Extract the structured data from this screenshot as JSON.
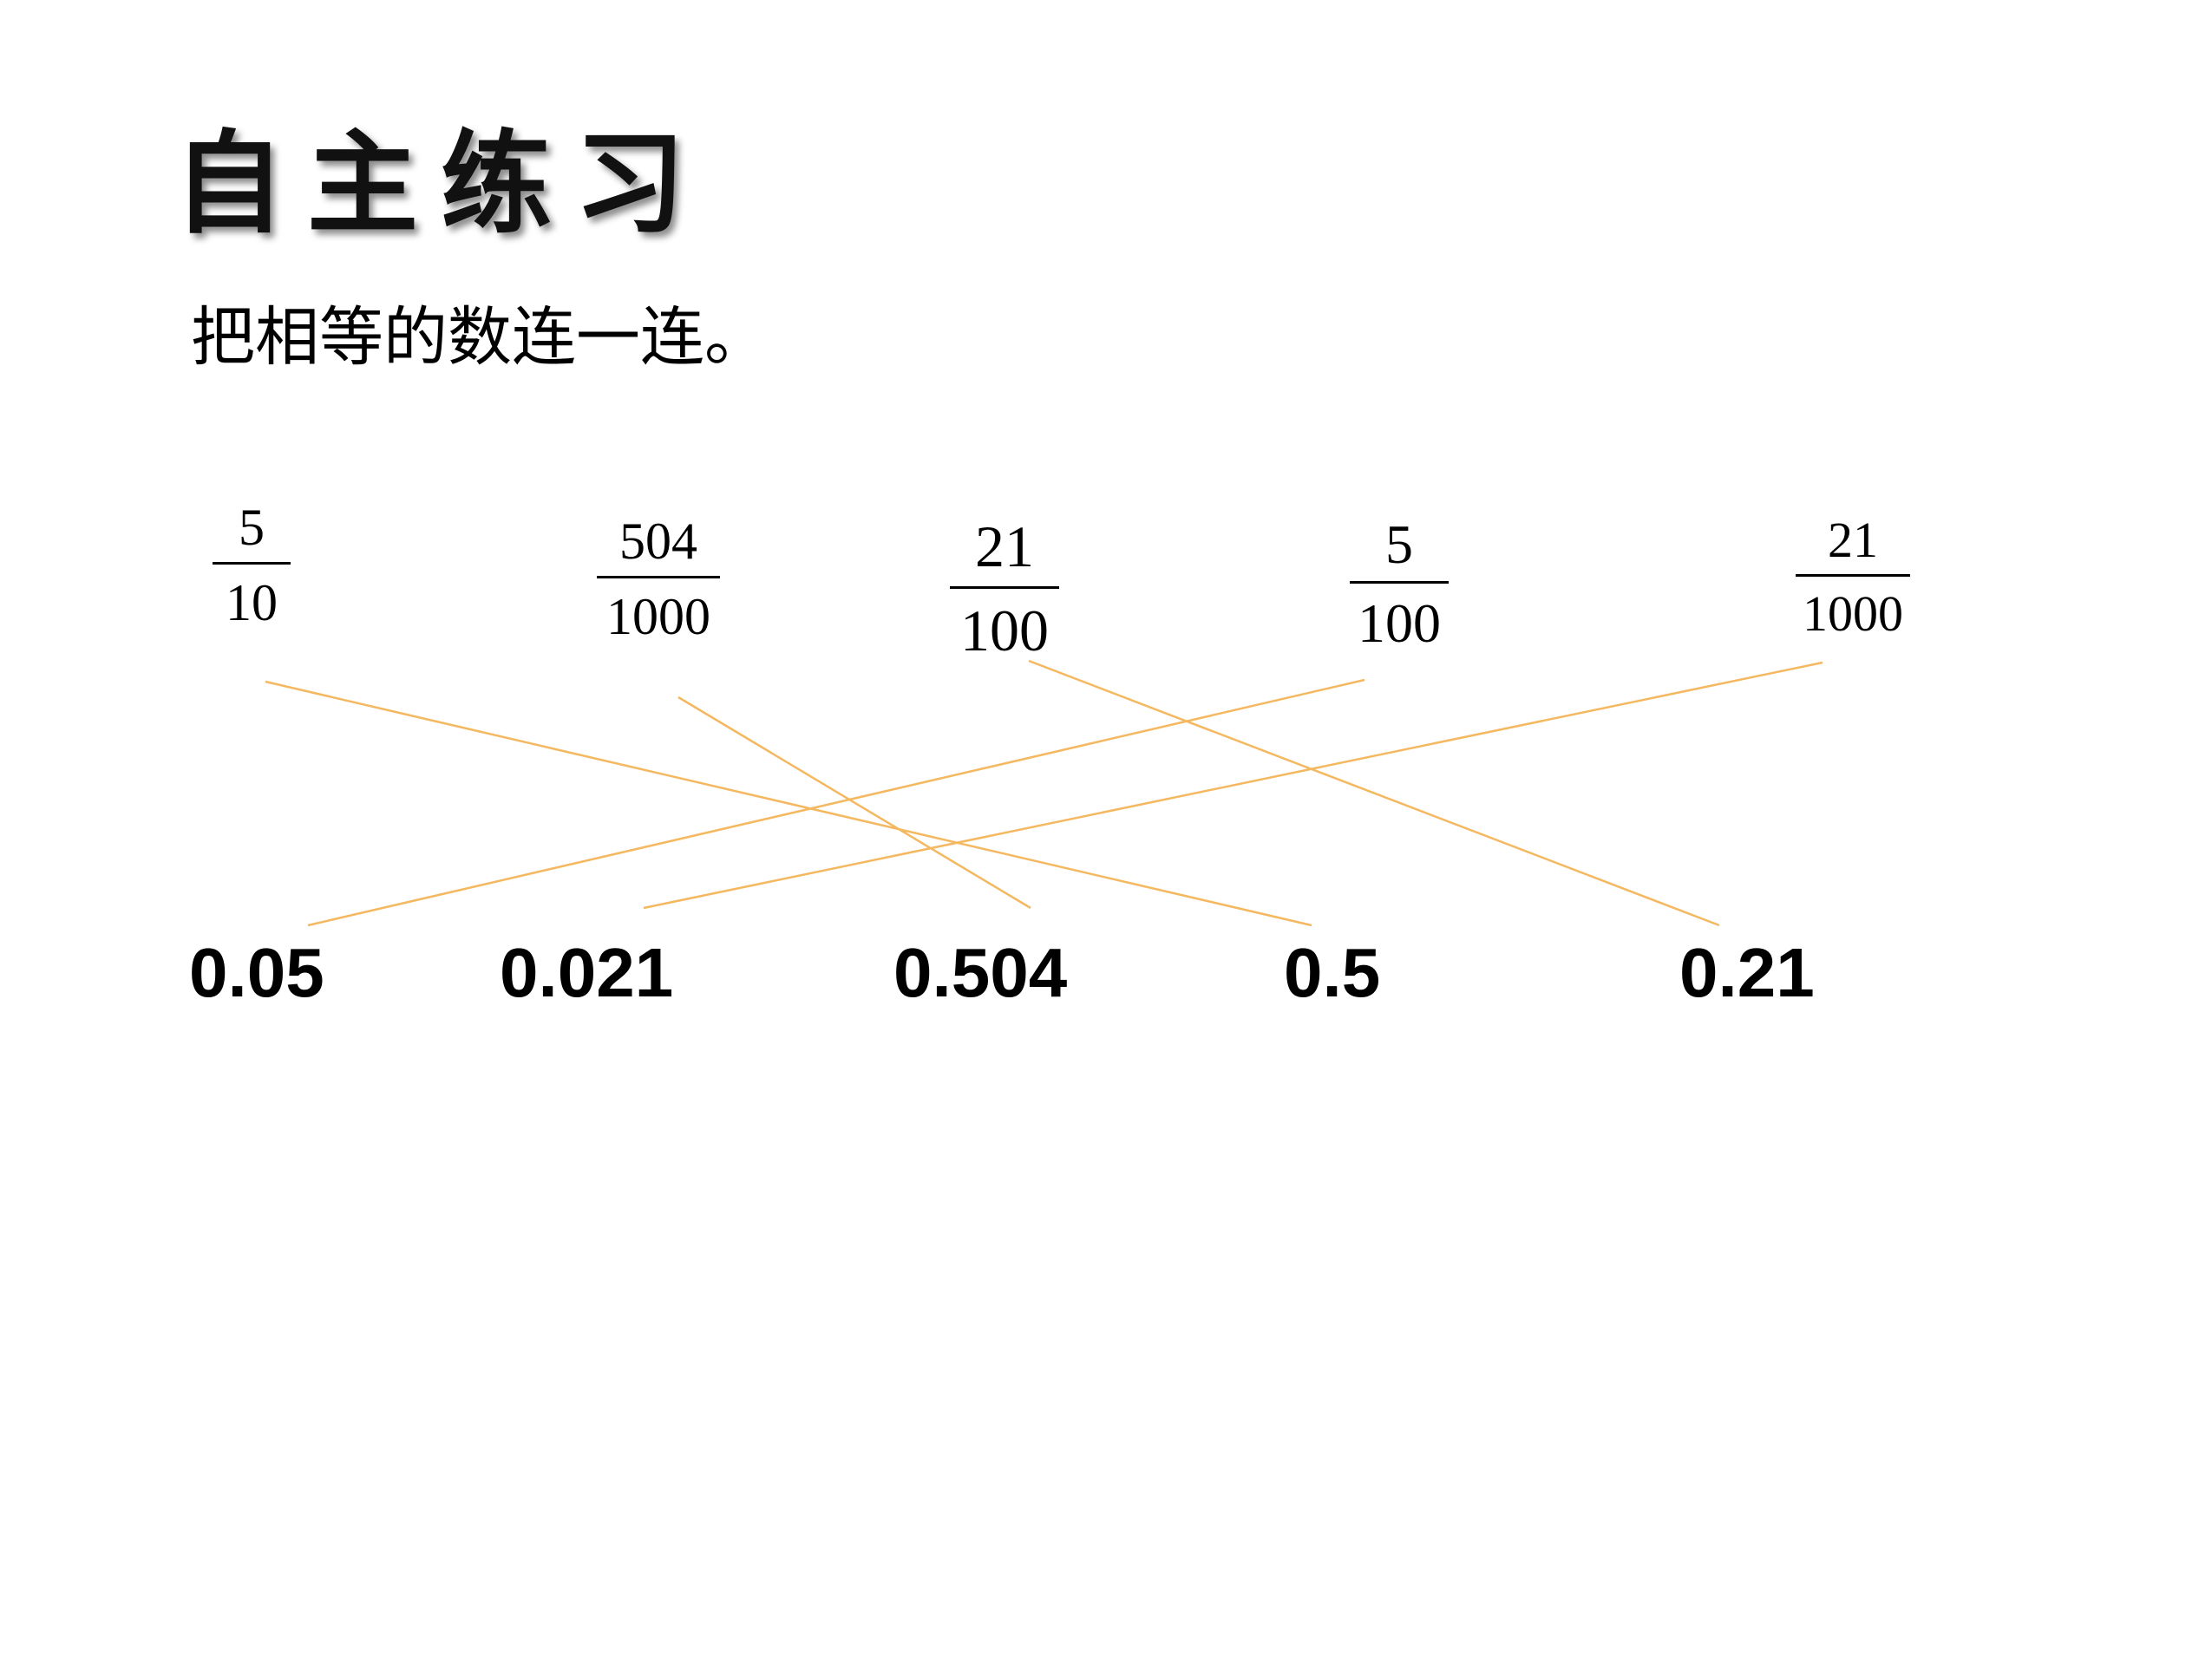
{
  "title": "自主练习",
  "instruction": "把相等的数连一连。",
  "fractions": [
    {
      "numerator": "5",
      "denominator": "10"
    },
    {
      "numerator": "504",
      "denominator": "1000"
    },
    {
      "numerator": "21",
      "denominator": "100"
    },
    {
      "numerator": "5",
      "denominator": "100"
    },
    {
      "numerator": "21",
      "denominator": "1000"
    }
  ],
  "decimals": [
    "0.05",
    "0.021",
    "0.504",
    "0.5",
    "0.21"
  ],
  "connections": [
    {
      "from": "5/10",
      "to": "0.5"
    },
    {
      "from": "504/1000",
      "to": "0.504"
    },
    {
      "from": "21/100",
      "to": "0.21"
    },
    {
      "from": "5/100",
      "to": "0.05"
    },
    {
      "from": "21/1000",
      "to": "0.021"
    }
  ],
  "colors": {
    "line": "#f4b860",
    "text": "#000000"
  }
}
